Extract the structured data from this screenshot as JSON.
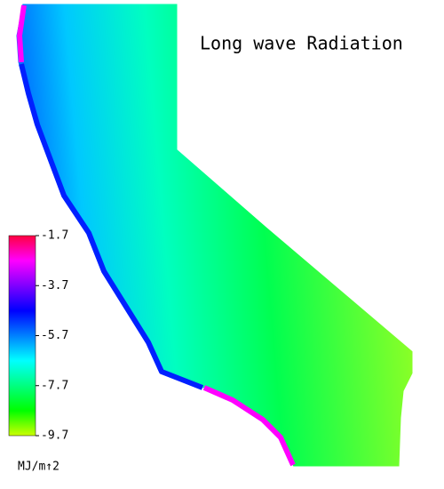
{
  "title": "Long wave Radiation",
  "legend": {
    "ticks": [
      -1.7,
      -3.7,
      -5.7,
      -7.7,
      -9.7
    ],
    "unit": "MJ/m↑2",
    "colors": [
      "#ff0040",
      "#ff00ff",
      "#8000ff",
      "#0000ff",
      "#0080ff",
      "#00ffff",
      "#00ff80",
      "#00ff00",
      "#ccff00"
    ]
  }
}
